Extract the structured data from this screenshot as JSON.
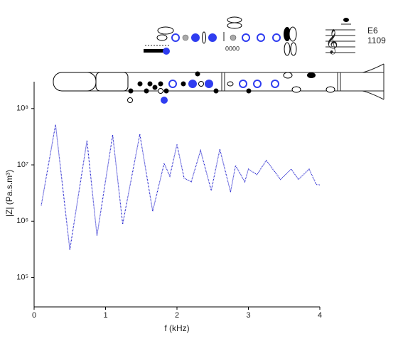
{
  "note": "E6",
  "frequency": "1109",
  "chart_data": {
    "type": "line",
    "x_label": "f (kHz)",
    "y_label": "|Z| (Pa.s.m³)",
    "log_y": true,
    "xlim": [
      0,
      4
    ],
    "xticks": [
      0,
      1,
      2,
      3,
      4
    ],
    "ylim": [
      30000,
      300000000
    ],
    "yticks": [
      {
        "value": 100000,
        "label": "10⁵"
      },
      {
        "value": 1000000,
        "label": "10⁶"
      },
      {
        "value": 10000000,
        "label": "10⁷"
      },
      {
        "value": 100000000,
        "label": "10⁸"
      }
    ],
    "x": [
      0.1,
      0.3,
      0.5,
      0.74,
      0.88,
      1.1,
      1.24,
      1.48,
      1.66,
      1.82,
      1.9,
      2.0,
      2.1,
      2.2,
      2.33,
      2.48,
      2.6,
      2.75,
      2.82,
      2.95,
      3.0,
      3.12,
      3.25,
      3.45,
      3.6,
      3.7,
      3.85,
      3.95,
      4.0
    ],
    "series": [
      {
        "color": "#1a1acc",
        "values": [
          1900000,
          52000000,
          310000,
          27000000,
          550000,
          34000000,
          890000,
          35000000,
          1500000,
          10600000,
          6300000,
          23000000,
          5800000,
          5000000,
          18000000,
          3500000,
          19000000,
          3300000,
          9700000,
          5000000,
          8400000,
          6700000,
          12000000,
          5500000,
          8400000,
          5500000,
          8400000,
          4500000,
          4400000
        ]
      }
    ]
  }
}
